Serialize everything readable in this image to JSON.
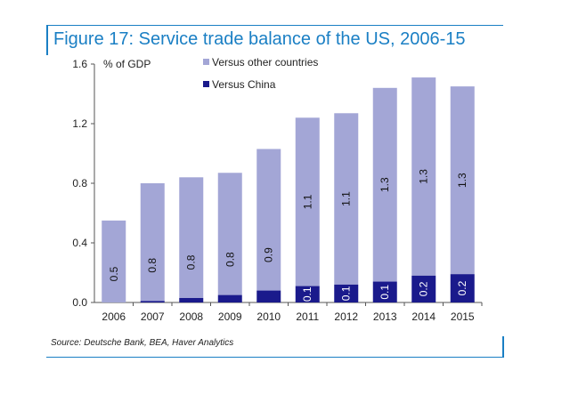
{
  "title": "Figure 17: Service trade balance of the US, 2006-15",
  "source": "Source: Deutsche Bank, BEA, Haver Analytics",
  "colors": {
    "accent": "#1a7fc4",
    "other": "#a3a6d6",
    "china": "#1a1a8c"
  },
  "chart_data": {
    "type": "bar",
    "stacked": true,
    "categories": [
      "2006",
      "2007",
      "2008",
      "2009",
      "2010",
      "2011",
      "2012",
      "2013",
      "2014",
      "2015"
    ],
    "series": [
      {
        "name": "Versus China",
        "values": [
          0.0,
          0.01,
          0.03,
          0.05,
          0.08,
          0.11,
          0.12,
          0.14,
          0.18,
          0.19
        ],
        "labels": [
          "",
          "",
          "",
          "",
          "",
          "0.1",
          "0.1",
          "0.1",
          "0.2",
          "0.2"
        ]
      },
      {
        "name": "Versus other countries",
        "values": [
          0.55,
          0.79,
          0.81,
          0.82,
          0.95,
          1.13,
          1.15,
          1.3,
          1.33,
          1.26
        ],
        "labels": [
          "0.5",
          "0.8",
          "0.8",
          "0.8",
          "0.9",
          "1.1",
          "1.1",
          "1.3",
          "1.3",
          "1.3"
        ]
      }
    ],
    "ylabel": "% of GDP",
    "ylim": [
      0,
      1.6
    ],
    "yticks": [
      "0.0",
      "0.4",
      "0.8",
      "1.2",
      "1.6"
    ],
    "grid": false,
    "legend": "top"
  }
}
